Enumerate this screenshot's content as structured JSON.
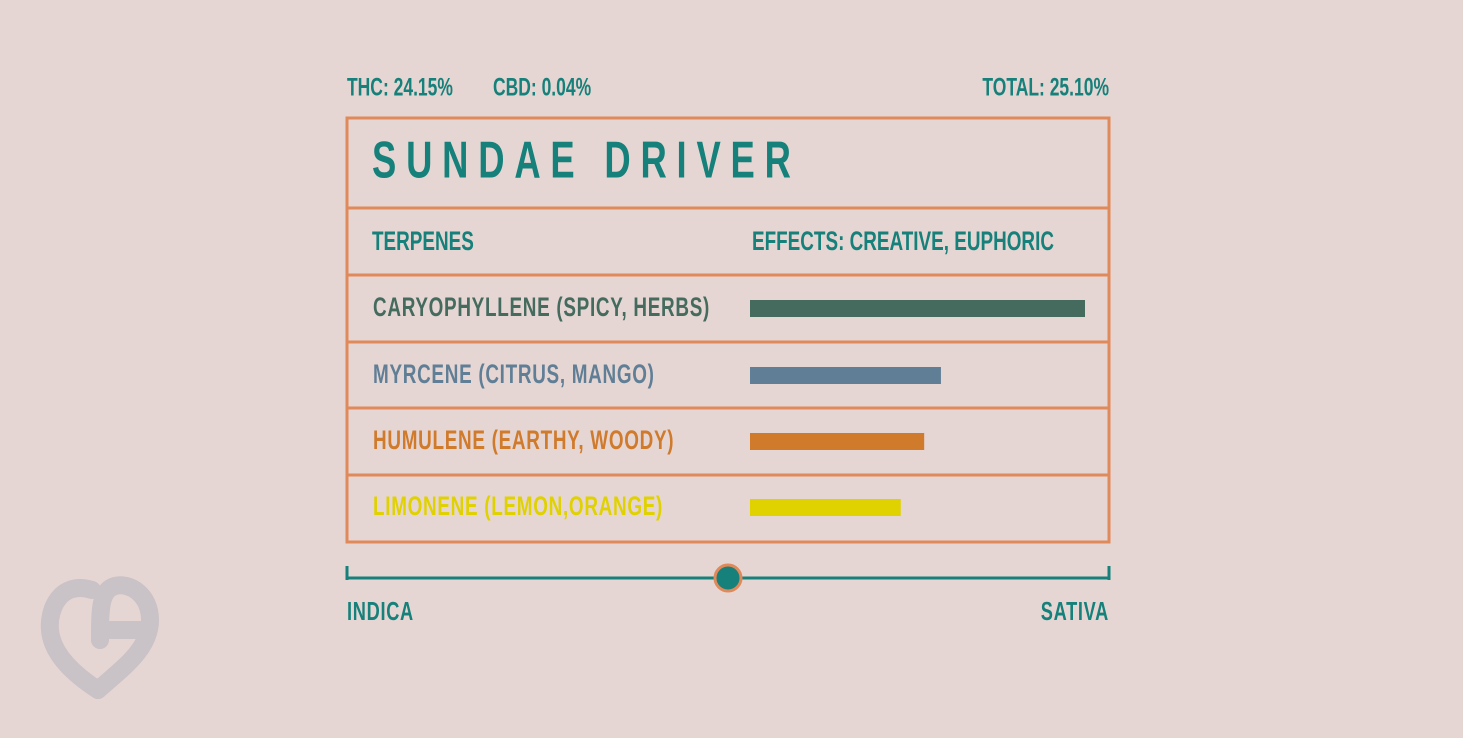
{
  "header": {
    "thc": "THC: 24.15%",
    "cbd": "CBD: 0.04%",
    "total": "TOTAL: 25.10%"
  },
  "title": "SUNDAE DRIVER",
  "terpenes_label": "TERPENES",
  "effects": "EFFECTS: CREATIVE, EUPHORIC",
  "terpenes": [
    {
      "name": "CARYOPHYLLENE (SPICY, HERBS)",
      "color": "#456b5e",
      "value": 1
    },
    {
      "name": "MYRCENE (CITRUS, MANGO)",
      "color": "#607f96",
      "value": 0.57
    },
    {
      "name": "HUMULENE (EARTHY, WOODY)",
      "color": "#d07a2c",
      "value": 0.52
    },
    {
      "name": "LIMONENE (LEMON,ORANGE)",
      "color": "#e0d200",
      "value": 0.45
    }
  ],
  "scale": {
    "left": "INDICA",
    "right": "SATIVA",
    "position": 0.5
  }
}
